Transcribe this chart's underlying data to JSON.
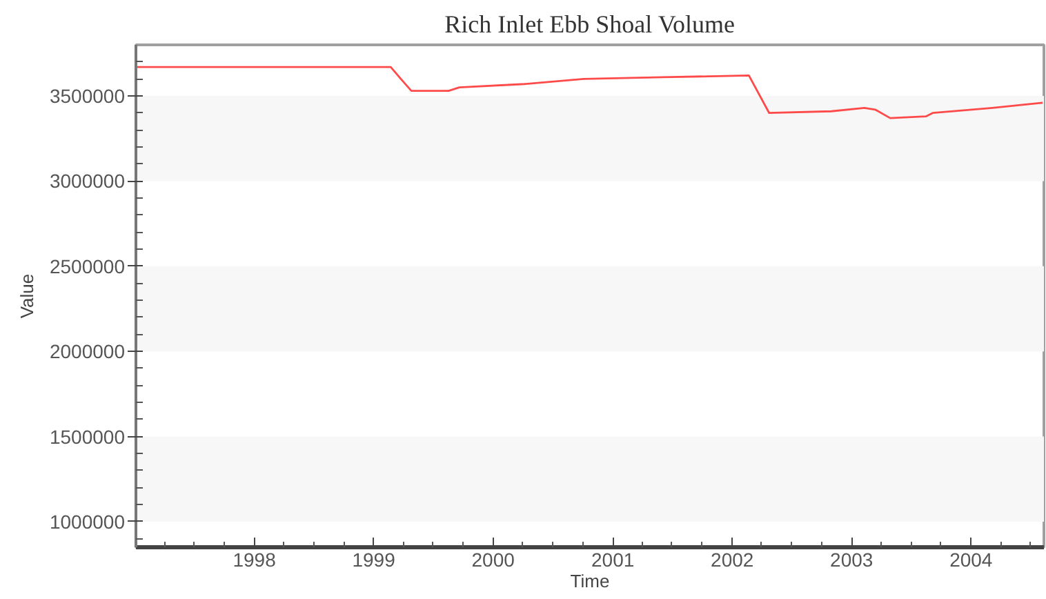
{
  "chart_data": {
    "type": "line",
    "title": "Rich Inlet Ebb Shoal Volume",
    "xlabel": "Time",
    "ylabel": "Value",
    "x": [
      "1997-01-05",
      "1999-02-22",
      "1999-03-25",
      "1999-04-26",
      "1999-08-18",
      "1999-09-20",
      "2000-04-06",
      "2000-10-04",
      "2001-06-01",
      "2002-02-21",
      "2002-04-24",
      "2002-10-31",
      "2003-02-09",
      "2003-03-14",
      "2003-04-29",
      "2003-08-16",
      "2003-09-06",
      "2004-03-06",
      "2004-08-07"
    ],
    "series": [
      {
        "color": "#ff4a4a",
        "values": [
          3670000,
          3670000,
          3600000,
          3530000,
          3530000,
          3550000,
          3570000,
          3600000,
          3610000,
          3620000,
          3400000,
          3410000,
          3430000,
          3420000,
          3370000,
          3380000,
          3400000,
          3430000,
          3460000
        ]
      }
    ],
    "xlim": [
      "1997-01-04",
      "2004-08-11"
    ],
    "ylim": [
      850000,
      3800000
    ],
    "xticks": [
      {
        "value": "1997-04",
        "label": null
      },
      {
        "value": "1997-07",
        "label": null
      },
      {
        "value": "1997-10",
        "label": null
      },
      "1998",
      {
        "value": "1998-04",
        "label": null
      },
      {
        "value": "1998-07",
        "label": null
      },
      {
        "value": "1998-10",
        "label": null
      },
      "1999",
      {
        "value": "1999-04",
        "label": null
      },
      {
        "value": "1999-07",
        "label": null
      },
      {
        "value": "1999-10",
        "label": null
      },
      "2000",
      {
        "value": "2000-04",
        "label": null
      },
      {
        "value": "2000-07",
        "label": null
      },
      {
        "value": "2000-10",
        "label": null
      },
      "2001",
      {
        "value": "2001-04",
        "label": null
      },
      {
        "value": "2001-07",
        "label": null
      },
      {
        "value": "2001-10",
        "label": null
      },
      "2002",
      {
        "value": "2002-04",
        "label": null
      },
      {
        "value": "2002-07",
        "label": null
      },
      {
        "value": "2002-10",
        "label": null
      },
      "2003",
      {
        "value": "2003-04",
        "label": null
      },
      {
        "value": "2003-07",
        "label": null
      },
      {
        "value": "2003-10",
        "label": null
      },
      "2004",
      {
        "value": "2004-04",
        "label": null
      },
      {
        "value": "2004-07",
        "label": null
      }
    ],
    "yticks": [
      {
        "value": 900000,
        "label": null
      },
      1000000,
      {
        "value": 1100000,
        "label": null
      },
      {
        "value": 1200000,
        "label": null
      },
      {
        "value": 1300000,
        "label": null
      },
      {
        "value": 1400000,
        "label": null
      },
      1500000,
      {
        "value": 1600000,
        "label": null
      },
      {
        "value": 1700000,
        "label": null
      },
      {
        "value": 1800000,
        "label": null
      },
      {
        "value": 1900000,
        "label": null
      },
      2000000,
      {
        "value": 2100000,
        "label": null
      },
      {
        "value": 2200000,
        "label": null
      },
      {
        "value": 2300000,
        "label": null
      },
      {
        "value": 2400000,
        "label": null
      },
      2500000,
      {
        "value": 2600000,
        "label": null
      },
      {
        "value": 2700000,
        "label": null
      },
      {
        "value": 2800000,
        "label": null
      },
      {
        "value": 2900000,
        "label": null
      },
      3000000,
      {
        "value": 3100000,
        "label": null
      },
      {
        "value": 3200000,
        "label": null
      },
      {
        "value": 3300000,
        "label": null
      },
      {
        "value": 3400000,
        "label": null
      },
      3500000,
      {
        "value": 3600000,
        "label": null
      },
      {
        "value": 3700000,
        "label": null
      }
    ],
    "bands": [
      {
        "axis": "y",
        "from": 1000000,
        "to": 1500000,
        "color": "#f7f7f7"
      },
      {
        "axis": "y",
        "from": 2000000,
        "to": 2500000,
        "color": "#f7f7f7"
      },
      {
        "axis": "y",
        "from": 3000000,
        "to": 3500000,
        "color": "#f7f7f7"
      }
    ]
  }
}
